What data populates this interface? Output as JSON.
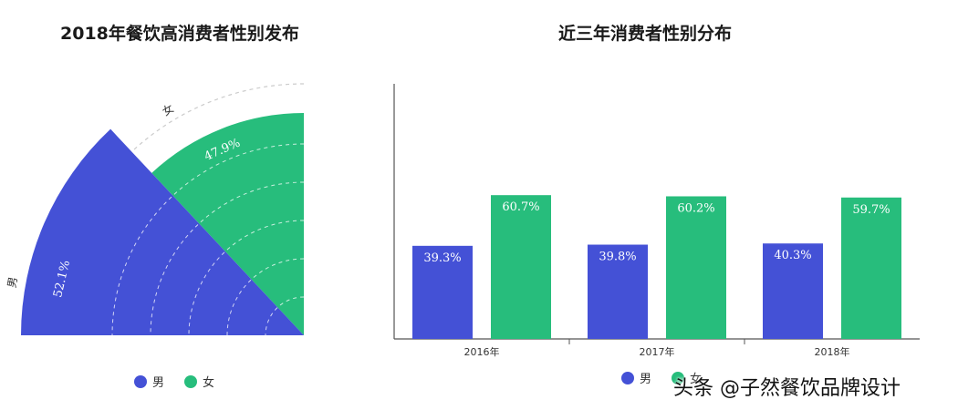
{
  "colors": {
    "male": "#4451d6",
    "female": "#27bd7c",
    "axis": "#555555",
    "guide": "#cccccc"
  },
  "chart_data": [
    {
      "type": "pie",
      "title": "2018年餐饮高消费者性别发布",
      "slices": [
        {
          "name": "男",
          "value": 52.1,
          "label": "52.1%"
        },
        {
          "name": "女",
          "value": 47.9,
          "label": "47.9%"
        }
      ],
      "legend": [
        "男",
        "女"
      ],
      "legend_position": "bottom"
    },
    {
      "type": "bar",
      "title": "近三年消费者性别分布",
      "categories": [
        "2016年",
        "2017年",
        "2018年"
      ],
      "series": [
        {
          "name": "男",
          "values": [
            39.3,
            39.8,
            40.3
          ],
          "labels": [
            "39.3%",
            "39.8%",
            "40.3%"
          ]
        },
        {
          "name": "女",
          "values": [
            60.7,
            60.2,
            59.7
          ],
          "labels": [
            "60.7%",
            "60.2%",
            "59.7%"
          ]
        }
      ],
      "legend": [
        "男",
        "女"
      ],
      "legend_position": "bottom"
    }
  ],
  "watermark": "头条 @子然餐饮品牌设计"
}
